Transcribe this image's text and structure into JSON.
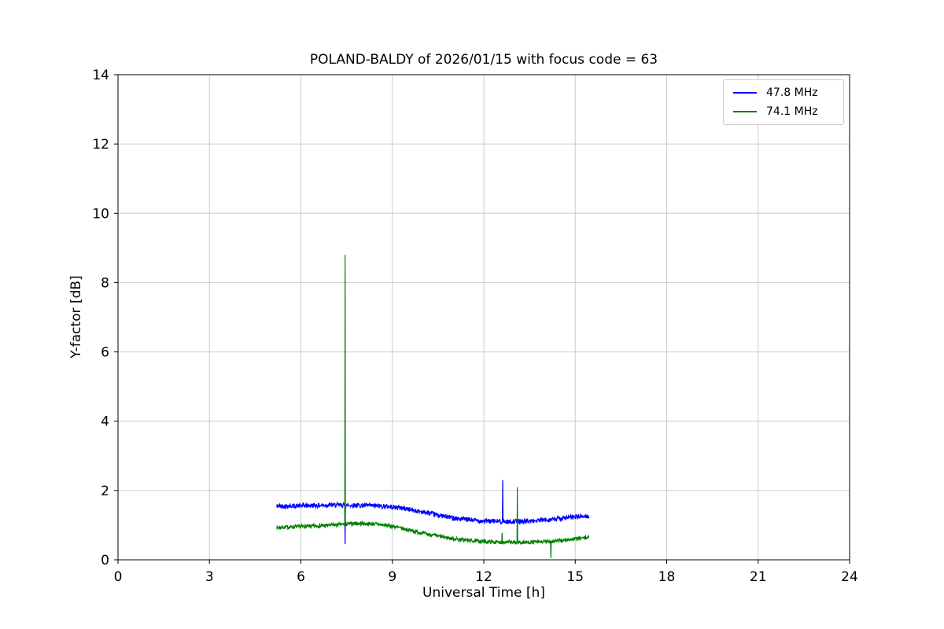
{
  "chart_data": {
    "type": "line",
    "title": "POLAND-BALDY of 2026/01/15 with focus code = 63",
    "xlabel": "Universal Time [h]",
    "ylabel": "Y-factor [dB]",
    "xlim": [
      0,
      24
    ],
    "ylim": [
      0,
      14
    ],
    "xticks": [
      0,
      3,
      6,
      9,
      12,
      15,
      18,
      21,
      24
    ],
    "yticks": [
      0,
      2,
      4,
      6,
      8,
      10,
      12,
      14
    ],
    "grid": true,
    "grid_color": "#cccccc",
    "axis_color": "#000000",
    "legend_position": "top-right",
    "series": [
      {
        "name": "47.8 MHz",
        "color": "#0000ff",
        "noise": 0.07,
        "seed": 42,
        "baseline": [
          [
            5.2,
            1.55
          ],
          [
            6.0,
            1.56
          ],
          [
            7.0,
            1.58
          ],
          [
            8.0,
            1.57
          ],
          [
            8.7,
            1.55
          ],
          [
            9.3,
            1.5
          ],
          [
            10.0,
            1.38
          ],
          [
            10.6,
            1.27
          ],
          [
            11.2,
            1.18
          ],
          [
            12.0,
            1.12
          ],
          [
            12.8,
            1.1
          ],
          [
            13.6,
            1.12
          ],
          [
            14.3,
            1.17
          ],
          [
            15.0,
            1.24
          ],
          [
            15.45,
            1.26
          ]
        ],
        "spikes": [
          {
            "x": 7.45,
            "y": 0.45
          },
          {
            "x": 12.62,
            "y": 2.3
          }
        ]
      },
      {
        "name": "74.1 MHz",
        "color": "#008000",
        "noise": 0.055,
        "seed": 7,
        "baseline": [
          [
            5.2,
            0.93
          ],
          [
            6.0,
            0.96
          ],
          [
            7.0,
            1.0
          ],
          [
            7.8,
            1.05
          ],
          [
            8.5,
            1.03
          ],
          [
            9.0,
            0.97
          ],
          [
            9.6,
            0.85
          ],
          [
            10.2,
            0.73
          ],
          [
            10.9,
            0.62
          ],
          [
            11.6,
            0.55
          ],
          [
            12.4,
            0.51
          ],
          [
            13.2,
            0.5
          ],
          [
            14.0,
            0.52
          ],
          [
            14.7,
            0.57
          ],
          [
            15.2,
            0.62
          ],
          [
            15.45,
            0.65
          ]
        ],
        "spikes": [
          {
            "x": 7.45,
            "y": 8.8
          },
          {
            "x": 12.6,
            "y": 0.78
          },
          {
            "x": 13.1,
            "y": 2.1
          },
          {
            "x": 14.2,
            "y": 0.05
          }
        ]
      }
    ]
  }
}
